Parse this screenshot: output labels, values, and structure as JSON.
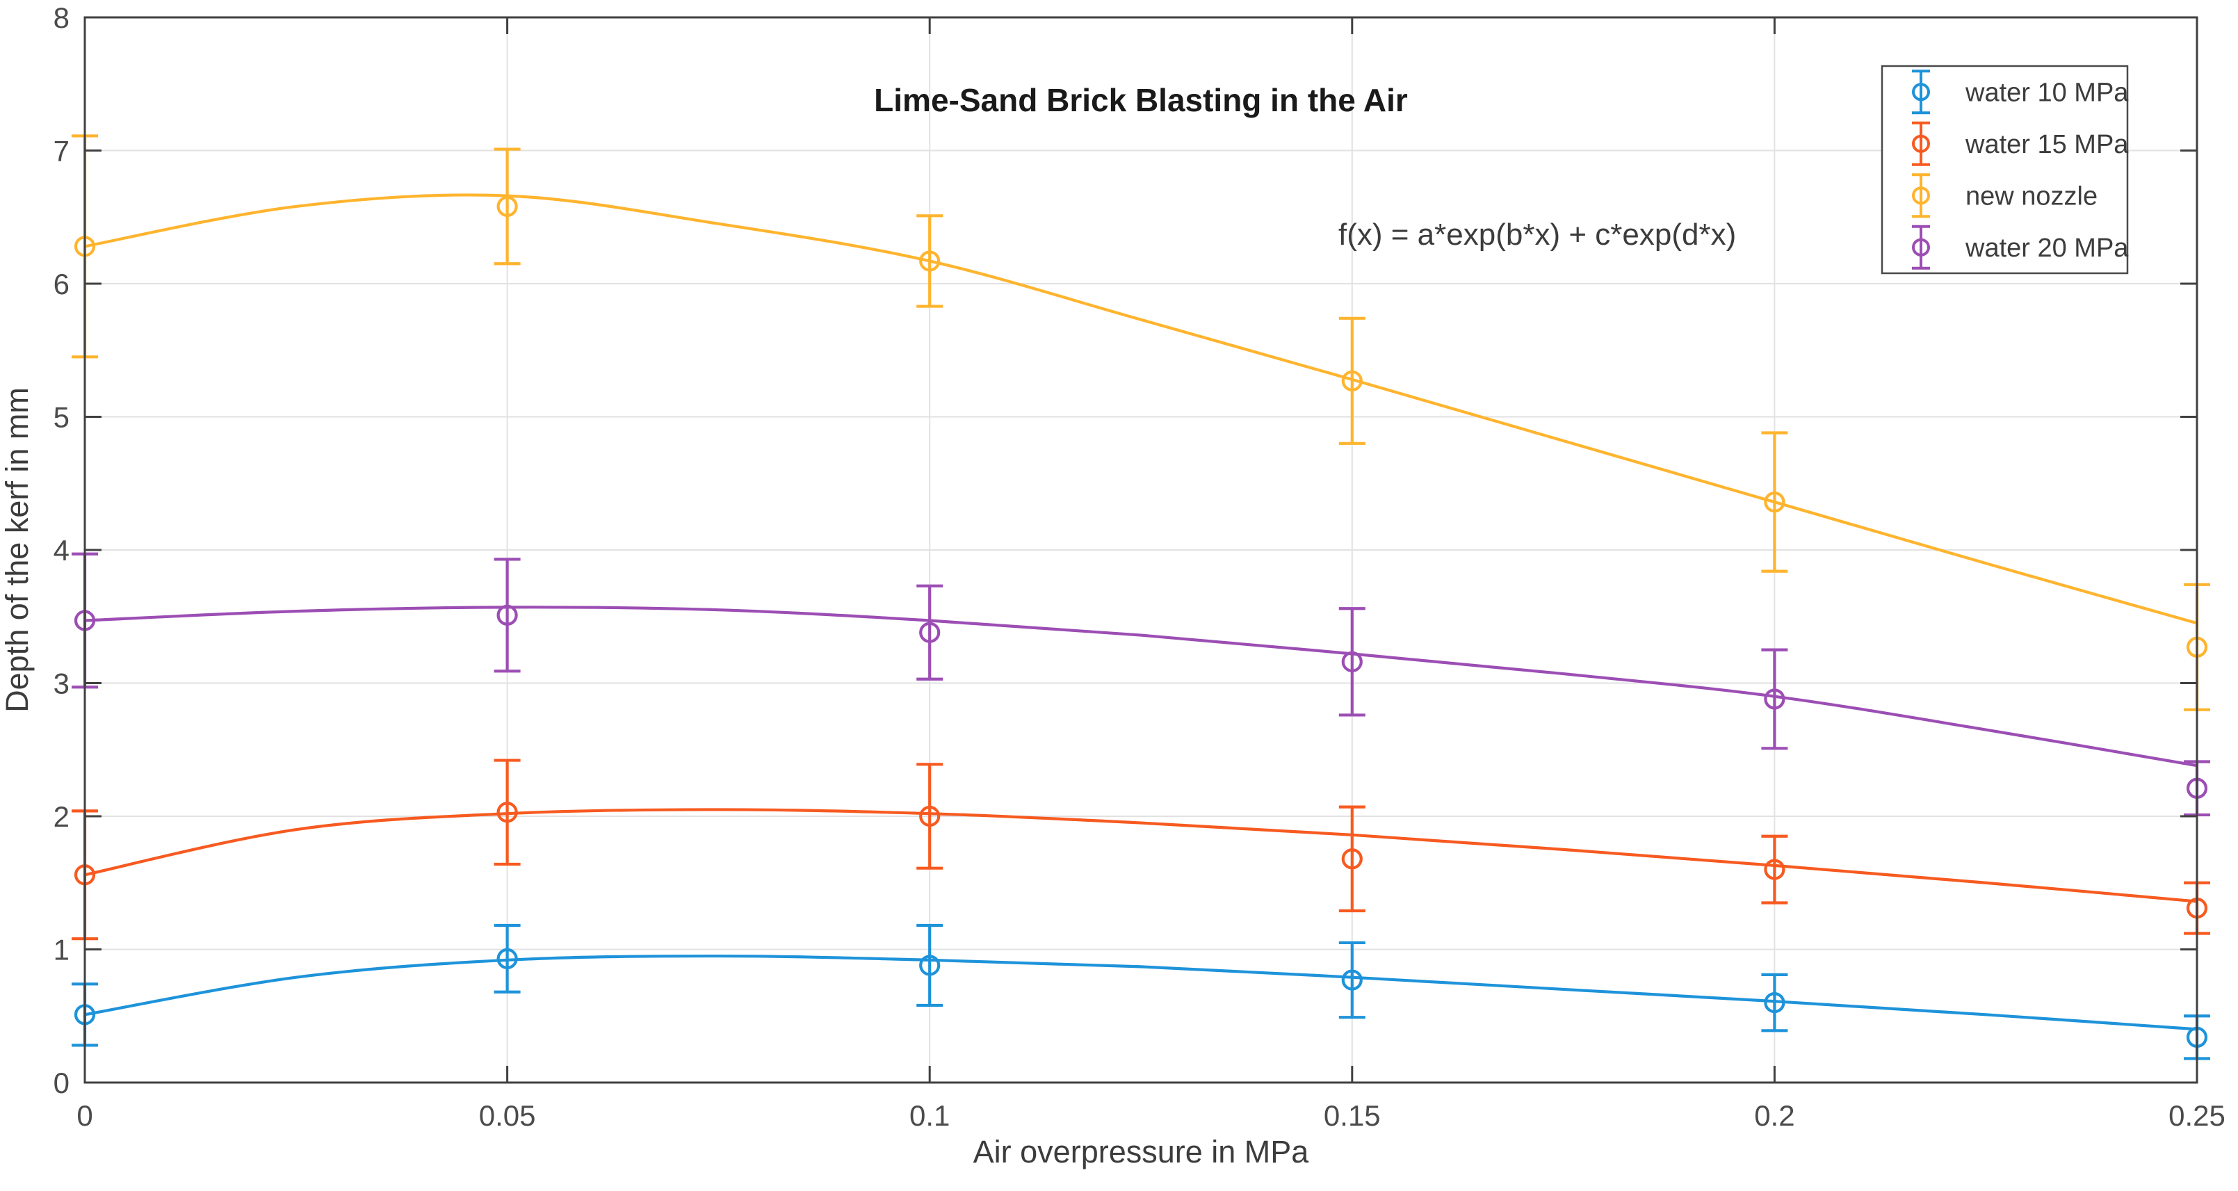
{
  "style": {
    "background": "#FFFFFF",
    "axis_color": "#404040",
    "grid_color": "#E2E2E2",
    "tick_text_color": "#4B4B4B",
    "label_text_color": "#3C3C3C",
    "title_color": "#1A1A1A",
    "legend_border_color": "#4A4A4A"
  },
  "chart_data": {
    "type": "line",
    "title": "Lime-Sand Brick Blasting in the Air",
    "annotation": "f(x) = a*exp(b*x) + c*exp(d*x)",
    "xlabel": "Air overpressure in MPa",
    "ylabel": "Depth of the kerf in mm",
    "xlim": [
      0,
      0.25
    ],
    "ylim": [
      0,
      8
    ],
    "xticks": [
      0,
      0.05,
      0.1,
      0.15,
      0.2,
      0.25
    ],
    "xtick_labels": [
      "0",
      "0.05",
      "0.1",
      "0.15",
      "0.2",
      "0.25"
    ],
    "yticks": [
      0,
      1,
      2,
      3,
      4,
      5,
      6,
      7,
      8
    ],
    "ytick_labels": [
      "0",
      "1",
      "2",
      "3",
      "4",
      "5",
      "6",
      "7",
      "8"
    ],
    "grid": true,
    "legend_position": "top-right",
    "x": [
      0,
      0.05,
      0.1,
      0.15,
      0.2,
      0.25
    ],
    "fit_x": [
      0,
      0.025,
      0.05,
      0.075,
      0.1,
      0.125,
      0.15,
      0.175,
      0.2,
      0.225,
      0.25
    ],
    "series": [
      {
        "name": "water 10 MPa",
        "color": "#1E93DA",
        "marker": "circle-errorbar",
        "values": [
          0.51,
          0.93,
          0.88,
          0.77,
          0.6,
          0.34
        ],
        "errors": [
          0.23,
          0.25,
          0.3,
          0.28,
          0.21,
          0.16
        ],
        "fit": [
          0.51,
          0.79,
          0.92,
          0.95,
          0.92,
          0.87,
          0.79,
          0.7,
          0.61,
          0.51,
          0.4
        ]
      },
      {
        "name": "water 15 MPa",
        "color": "#F75A20",
        "marker": "circle-errorbar",
        "values": [
          1.56,
          2.03,
          2.0,
          1.68,
          1.6,
          1.31
        ],
        "errors": [
          0.48,
          0.39,
          0.39,
          0.39,
          0.25,
          0.19
        ],
        "fit": [
          1.56,
          1.9,
          2.02,
          2.05,
          2.02,
          1.95,
          1.86,
          1.75,
          1.63,
          1.5,
          1.36
        ]
      },
      {
        "name": "new nozzle",
        "color": "#FFB42E",
        "marker": "circle-errorbar",
        "values": [
          6.28,
          6.58,
          6.17,
          5.27,
          4.36,
          3.27
        ],
        "errors": [
          0.83,
          0.43,
          0.34,
          0.47,
          0.52,
          0.47
        ],
        "fit": [
          6.28,
          6.58,
          6.66,
          6.45,
          6.17,
          5.73,
          5.28,
          4.82,
          4.36,
          3.9,
          3.45
        ]
      },
      {
        "name": "water 20 MPa",
        "color": "#9C4EB4",
        "marker": "circle-errorbar",
        "values": [
          3.47,
          3.51,
          3.38,
          3.16,
          2.88,
          2.21
        ],
        "errors": [
          0.5,
          0.42,
          0.35,
          0.4,
          0.37,
          0.2
        ],
        "fit": [
          3.47,
          3.54,
          3.57,
          3.55,
          3.47,
          3.36,
          3.22,
          3.07,
          2.9,
          2.65,
          2.38
        ]
      }
    ]
  }
}
